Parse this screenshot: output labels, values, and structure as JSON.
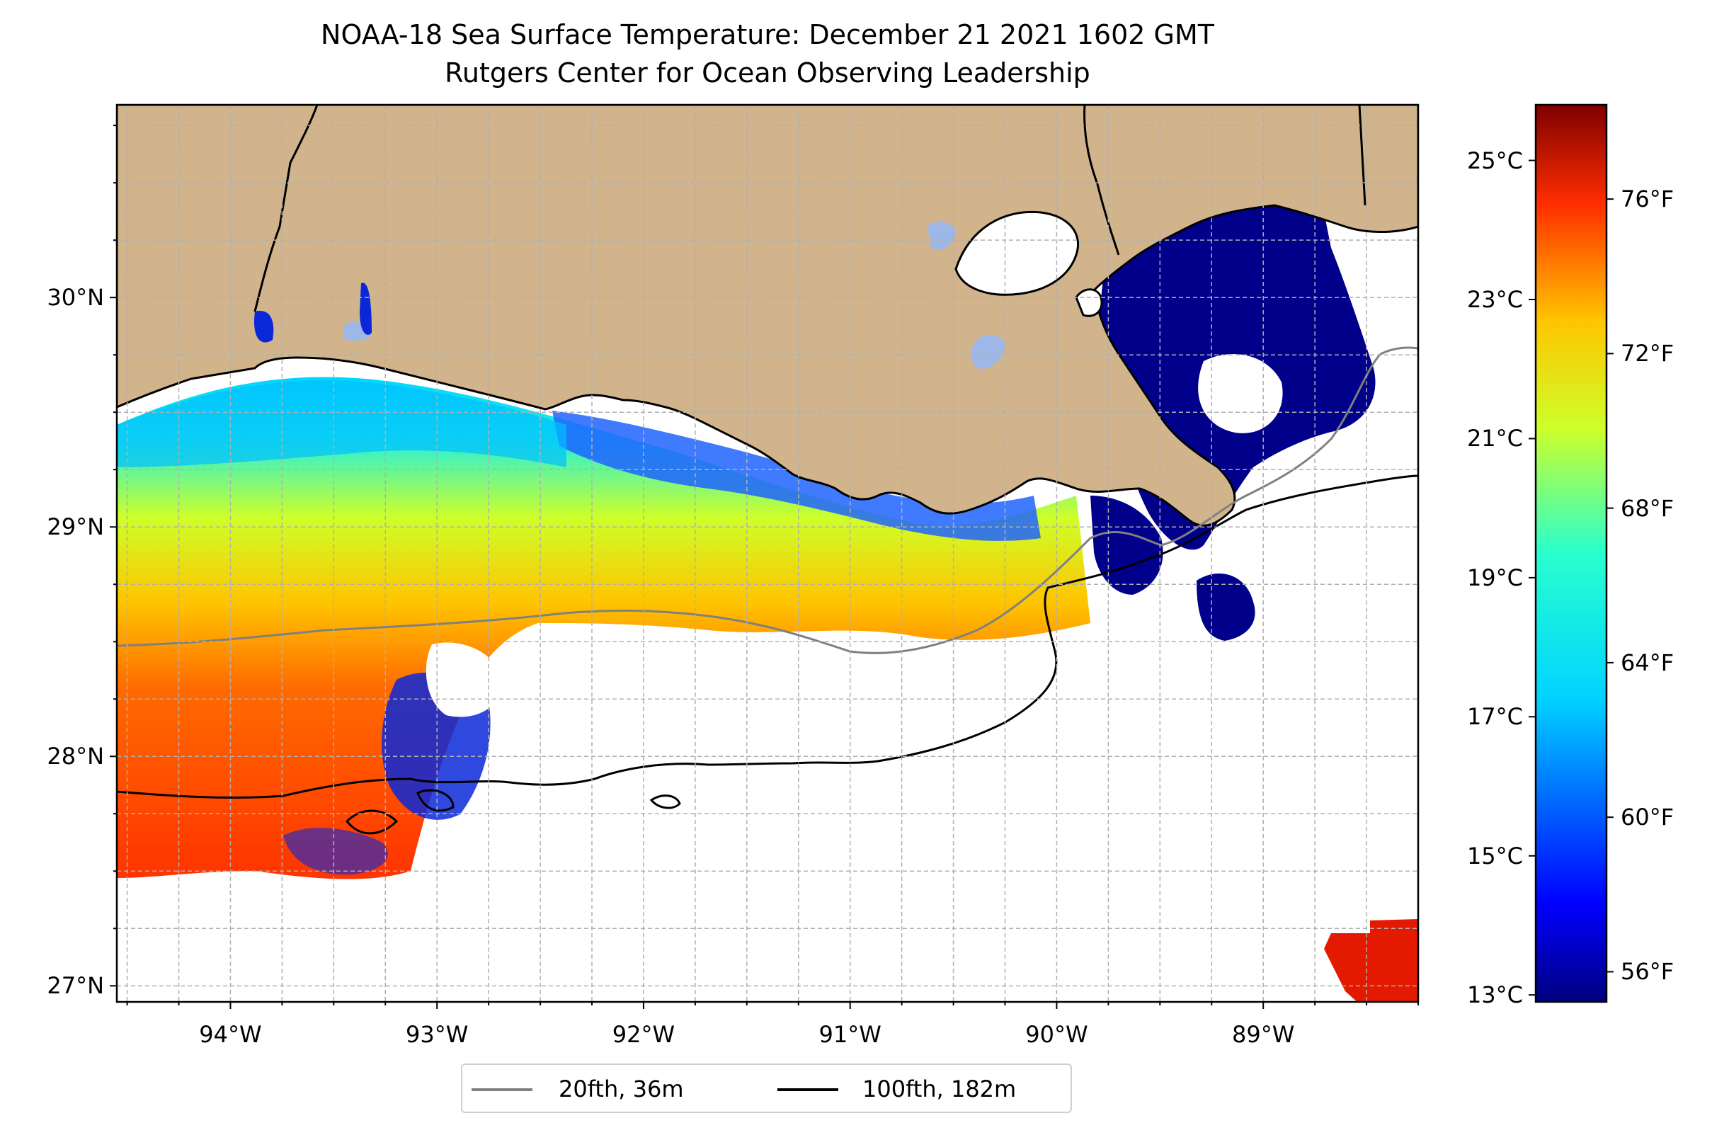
{
  "title": {
    "line1": "NOAA-18 Sea Surface Temperature: December 21 2021 1602 GMT",
    "line2": "Rutgers Center for Ocean Observing Leadership"
  },
  "map": {
    "lon_range": [
      -94.55,
      -88.25
    ],
    "lat_range": [
      26.93,
      30.84
    ],
    "lon_ticks": [
      {
        "value": -94,
        "label": "94°W"
      },
      {
        "value": -93,
        "label": "93°W"
      },
      {
        "value": -92,
        "label": "92°W"
      },
      {
        "value": -91,
        "label": "91°W"
      },
      {
        "value": -90,
        "label": "90°W"
      },
      {
        "value": -89,
        "label": "89°W"
      }
    ],
    "lat_ticks": [
      {
        "value": 30,
        "label": "30°N"
      },
      {
        "value": 29,
        "label": "29°N"
      },
      {
        "value": 28,
        "label": "28°N"
      },
      {
        "value": 27,
        "label": "27°N"
      }
    ],
    "grid": true,
    "colors": {
      "land": "#d2b48c",
      "inland_water": "#9db8e6",
      "isobath_20fth": "#808080",
      "isobath_100fth": "#000000",
      "gridline": "#b0b0b0"
    }
  },
  "colorbar": {
    "colormap": "jet",
    "celsius_ticks": [
      {
        "value": 25,
        "label": "25°C"
      },
      {
        "value": 23,
        "label": "23°C"
      },
      {
        "value": 21,
        "label": "21°C"
      },
      {
        "value": 19,
        "label": "19°C"
      },
      {
        "value": 17,
        "label": "17°C"
      },
      {
        "value": 15,
        "label": "15°C"
      },
      {
        "value": 13,
        "label": "13°C"
      }
    ],
    "fahrenheit_ticks": [
      {
        "value": 76,
        "label": "76°F"
      },
      {
        "value": 72,
        "label": "72°F"
      },
      {
        "value": 68,
        "label": "68°F"
      },
      {
        "value": 64,
        "label": "64°F"
      },
      {
        "value": 60,
        "label": "60°F"
      },
      {
        "value": 56,
        "label": "56°F"
      }
    ]
  },
  "legend": {
    "items": [
      {
        "label": "20fth, 36m",
        "color": "#808080"
      },
      {
        "label": "100fth, 182m",
        "color": "#000000"
      }
    ]
  }
}
